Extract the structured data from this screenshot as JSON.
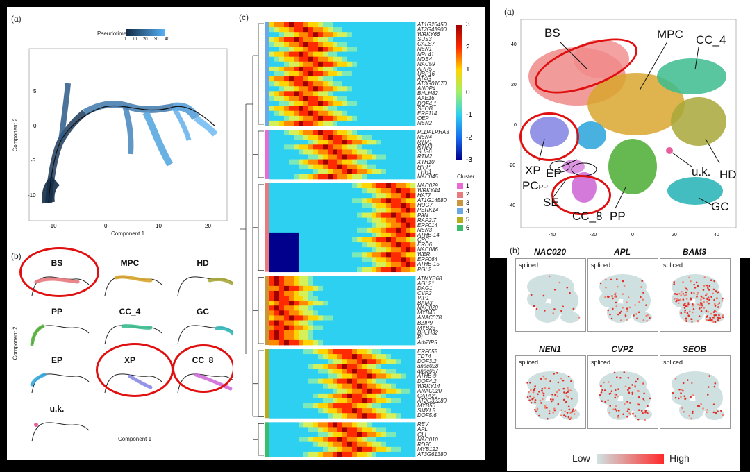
{
  "panel_left": {
    "a_label": "(a)",
    "legend_title": "Pseudotime",
    "legend_ticks": [
      "0",
      "10",
      "20",
      "30",
      "40"
    ],
    "x_axis_label": "Component 1",
    "y_axis_label": "Component 2",
    "x_ticks": [
      "-10",
      "0",
      "10",
      "20"
    ],
    "y_ticks": [
      "5",
      "0",
      "-5",
      "-10"
    ],
    "b_label": "(b)",
    "small_multiples": [
      {
        "name": "BS",
        "color": "#e8797d"
      },
      {
        "name": "MPC",
        "color": "#d9a62e"
      },
      {
        "name": "HD",
        "color": "#a8a83a"
      },
      {
        "name": "PP",
        "color": "#54b13d"
      },
      {
        "name": "CC_4",
        "color": "#3cbc8e"
      },
      {
        "name": "GC",
        "color": "#2fb6b8"
      },
      {
        "name": "EP",
        "color": "#34a9dc"
      },
      {
        "name": "XP",
        "color": "#8a8ae6"
      },
      {
        "name": "CC_8",
        "color": "#cf6bd6"
      },
      {
        "name": "u.k.",
        "color": "#e85fa0"
      }
    ],
    "b_x_axis_label": "Component 1",
    "b_y_axis_label": "Component 2"
  },
  "panel_middle": {
    "c_label": "(c)",
    "colorbar_ticks": [
      "3",
      "2",
      "1",
      "0",
      "-1",
      "-2",
      "-3"
    ],
    "cluster_legend_title": "Cluster",
    "clusters": [
      {
        "id": "1",
        "color": "#e86ad7"
      },
      {
        "id": "2",
        "color": "#e8797d"
      },
      {
        "id": "3",
        "color": "#c9963b"
      },
      {
        "id": "4",
        "color": "#6aa8e8"
      },
      {
        "id": "5",
        "color": "#b8ac1a"
      },
      {
        "id": "6",
        "color": "#3cbc6a"
      }
    ],
    "blocks": [
      {
        "genes": [
          "AT1G26450",
          "AT2G45900",
          "WRKY66",
          "SUS3",
          "CALS7",
          "NEN1",
          "NPL41",
          "NDB4",
          "NAC59",
          "ARR5",
          "UBP16",
          "AT4G",
          "AT3G01670",
          "ANDP4",
          "BHLH82",
          "AAE16",
          "DOF4.1",
          "SEOB",
          "ERF114",
          "OEP",
          "NEN2"
        ]
      },
      {
        "genes": [
          "PLDALPHA3",
          "NEN4",
          "RTM1",
          "RTM3",
          "SUS6",
          "RTM2",
          "XTH10",
          "HIPP",
          "THH1",
          "NAC045"
        ]
      },
      {
        "genes": [
          "NAC029",
          "WRKY44",
          "HAT7",
          "AT1G14580",
          "HDG7",
          "PERK14",
          "PAN",
          "RAP2.7",
          "ERF014",
          "NEN3",
          "ATHB-14",
          "CPC",
          "ERD6",
          "NAC086",
          "WER",
          "ERF064",
          "ATHB-15",
          "PGL2"
        ]
      },
      {
        "genes": [
          "ATMYB68",
          "AGL21",
          "DAG1",
          "CVP2",
          "VIP1",
          "BAM3",
          "NAC020",
          "MYB46",
          "ANAC078",
          "BZIP9",
          "MYB23",
          "BHLH32",
          "PI",
          "AtbZIP5"
        ]
      },
      {
        "genes": [
          "ERF055",
          "TDT4",
          "DOF3.2",
          "anac028",
          "anac057",
          "ATHB-9",
          "DOF4.2",
          "WRKY14",
          "ANAC020",
          "GATA20",
          "AT2G32280",
          "MYB56",
          "SMXL5",
          "DOF5.6"
        ]
      },
      {
        "genes": [
          "REV",
          "APL",
          "GLI",
          "NAC010",
          "RD20",
          "MYB122",
          "AT3G61380"
        ]
      }
    ]
  },
  "panel_right": {
    "a_label": "(a)",
    "cluster_labels": [
      "BS",
      "MPC",
      "CC_4",
      "XP",
      "EP",
      "PC",
      "PP",
      "SE",
      "CC_8",
      "PP",
      "u.k.",
      "HD",
      "GC"
    ],
    "y_ticks": [
      "40",
      "20",
      "0",
      "-20",
      "-40"
    ],
    "x_ticks": [
      "-40",
      "-20",
      "0",
      "20",
      "40"
    ],
    "b_label": "(b)",
    "tsne_panels": [
      {
        "gene": "NAC020",
        "tag": "spliced"
      },
      {
        "gene": "APL",
        "tag": "spliced"
      },
      {
        "gene": "BAM3",
        "tag": "spliced"
      },
      {
        "gene": "NEN1",
        "tag": "spliced"
      },
      {
        "gene": "CVP2",
        "tag": "spliced"
      },
      {
        "gene": "SEOB",
        "tag": "spliced"
      }
    ],
    "legend_low": "Low",
    "legend_high": "High"
  }
}
